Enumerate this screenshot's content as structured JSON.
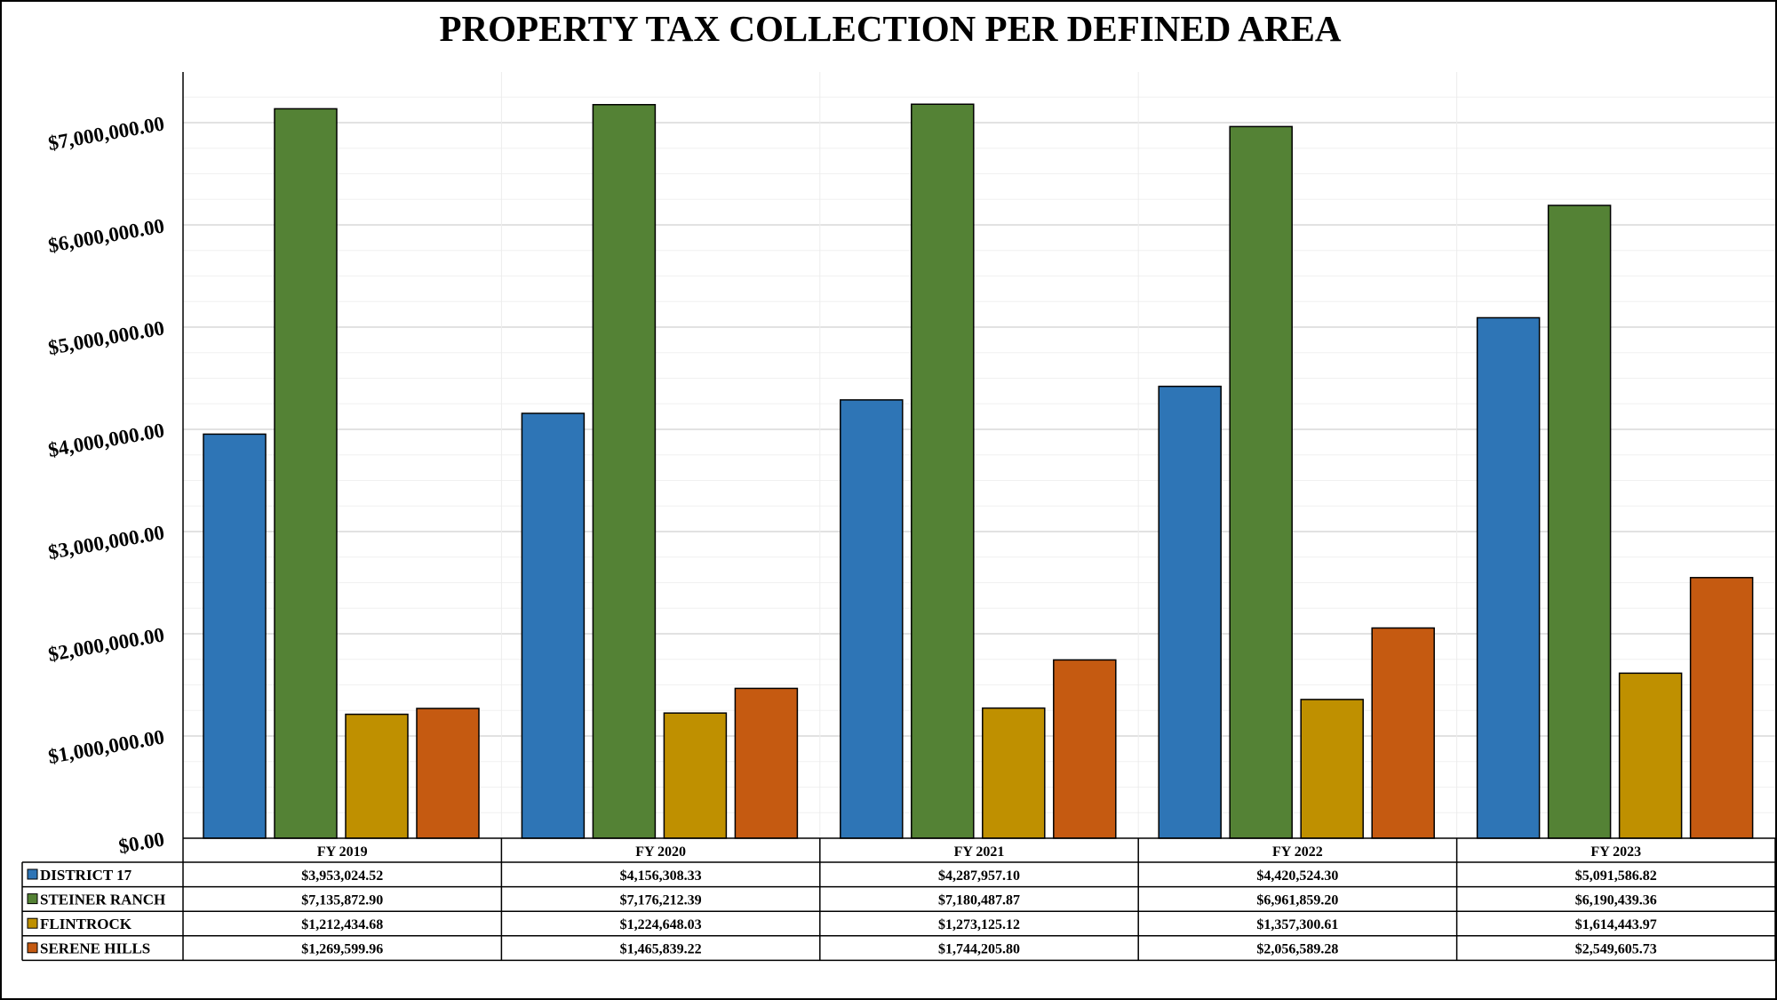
{
  "chart_data": {
    "type": "bar",
    "title": "PROPERTY TAX COLLECTION PER DEFINED AREA",
    "categories": [
      "FY 2019",
      "FY 2020",
      "FY 2021",
      "FY 2022",
      "FY 2023"
    ],
    "ylim": [
      0,
      7500000
    ],
    "yticks": [
      {
        "value": 0,
        "label": "$0.00"
      },
      {
        "value": 1000000,
        "label": "$1,000,000.00"
      },
      {
        "value": 2000000,
        "label": "$2,000,000.00"
      },
      {
        "value": 3000000,
        "label": "$3,000,000.00"
      },
      {
        "value": 4000000,
        "label": "$4,000,000.00"
      },
      {
        "value": 5000000,
        "label": "$5,000,000.00"
      },
      {
        "value": 6000000,
        "label": "$6,000,000.00"
      },
      {
        "value": 7000000,
        "label": "$7,000,000.00"
      }
    ],
    "grid": true,
    "legend": "data-table-below",
    "series": [
      {
        "name": "DISTRICT 17",
        "color": "#2E75B6",
        "values": [
          3953024.52,
          4156308.33,
          4287957.1,
          4420524.3,
          5091586.82
        ],
        "labels": [
          "$3,953,024.52",
          "$4,156,308.33",
          "$4,287,957.10",
          "$4,420,524.30",
          "$5,091,586.82"
        ]
      },
      {
        "name": "STEINER RANCH",
        "color": "#548235",
        "values": [
          7135872.9,
          7176212.39,
          7180487.87,
          6961859.2,
          6190439.36
        ],
        "labels": [
          "$7,135,872.90",
          "$7,176,212.39",
          "$7,180,487.87",
          "$6,961,859.20",
          "$6,190,439.36"
        ]
      },
      {
        "name": "FLINTROCK",
        "color": "#BF9000",
        "values": [
          1212434.68,
          1224648.03,
          1273125.12,
          1357300.61,
          1614443.97
        ],
        "labels": [
          "$1,212,434.68",
          "$1,224,648.03",
          "$1,273,125.12",
          "$1,357,300.61",
          "$1,614,443.97"
        ]
      },
      {
        "name": "SERENE HILLS",
        "color": "#C55A11",
        "values": [
          1269599.96,
          1465839.22,
          1744205.8,
          2056589.28,
          2549605.73
        ],
        "labels": [
          "$1,269,599.96",
          "$1,465,839.22",
          "$1,744,205.80",
          "$2,056,589.28",
          "$2,549,605.73"
        ]
      }
    ]
  }
}
